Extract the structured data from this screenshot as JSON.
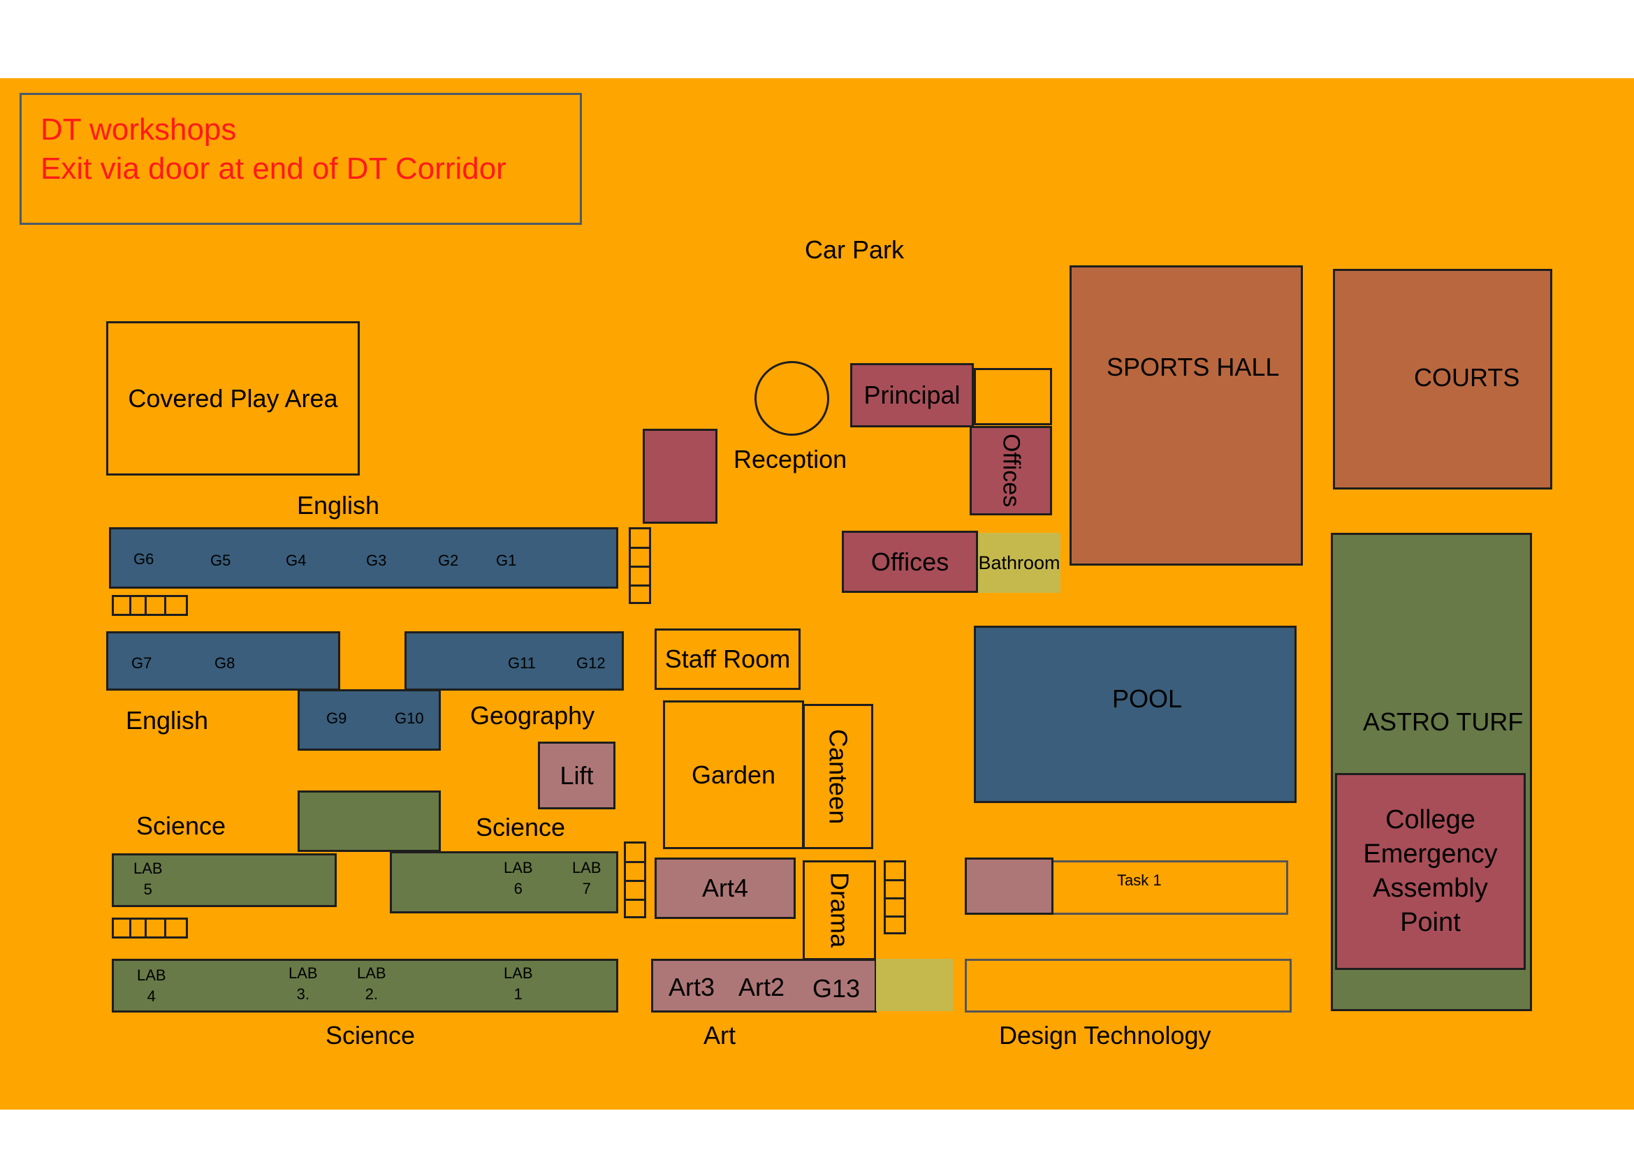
{
  "notice": {
    "line1": "DT workshops",
    "line2": "Exit via door at end of DT Corridor"
  },
  "areas": {
    "car_park": "Car Park",
    "covered_play": "Covered Play Area",
    "reception": "Reception",
    "principal": "Principal",
    "offices_vertical": "Offices",
    "offices": "Offices",
    "bathroom": "Bathroom",
    "sports_hall": "SPORTS HALL",
    "courts": "COURTS",
    "staff_room": "Staff Room",
    "pool": "POOL",
    "astro_turf": "ASTRO TURF",
    "assembly": [
      "College",
      "Emergency",
      "Assembly",
      "Point"
    ],
    "garden": "Garden",
    "canteen": "Canteen",
    "lift": "Lift",
    "art4": "Art4",
    "drama": "Drama",
    "task1": "Task 1",
    "art3": "Art3",
    "art2": "Art2",
    "g13": "G13"
  },
  "dept_labels": {
    "english_top": "English",
    "english_left": "English",
    "geography": "Geography",
    "science_left": "Science",
    "science_mid": "Science",
    "science_bottom": "Science",
    "art": "Art",
    "design_technology": "Design Technology"
  },
  "rooms": {
    "g6": "G6",
    "g5": "G5",
    "g4": "G4",
    "g3": "G3",
    "g2": "G2",
    "g1": "G1",
    "g7": "G7",
    "g8": "G8",
    "g11": "G11",
    "g12": "G12",
    "g9": "G9",
    "g10": "G10"
  },
  "labs": {
    "lab5": [
      "LAB",
      "5"
    ],
    "lab6": [
      "LAB",
      "6"
    ],
    "lab7": [
      "LAB",
      "7"
    ],
    "lab4": [
      "LAB",
      "4"
    ],
    "lab3": [
      "LAB",
      "3."
    ],
    "lab2": [
      "LAB",
      "2."
    ],
    "lab1": [
      "LAB",
      "1"
    ]
  },
  "colors": {
    "ground": "#FFA500",
    "notice_text": "#ff1a1a",
    "admin": "#A84E58",
    "art": "#AE7777",
    "teaching_block": "#3A5E7B",
    "science_block": "#687A47",
    "sports": "#B9673F",
    "bathroom": "#C5B94E"
  }
}
